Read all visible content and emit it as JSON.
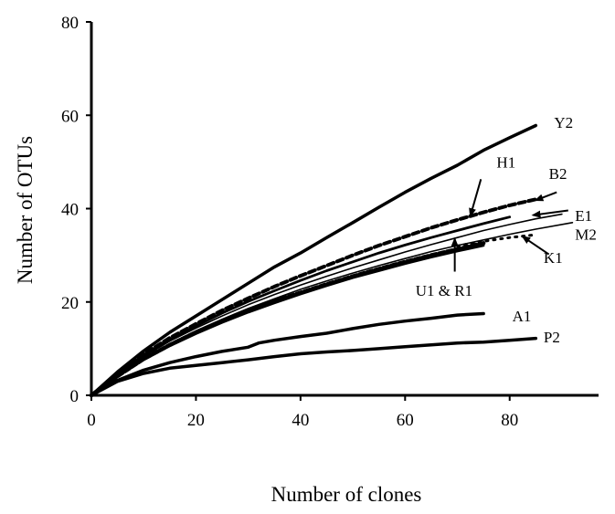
{
  "chart_data": {
    "type": "line",
    "title": "",
    "xlabel": "Number of clones",
    "ylabel": "Number of OTUs",
    "xlim": [
      0,
      97
    ],
    "ylim": [
      0,
      80
    ],
    "x_ticks": [
      0,
      20,
      40,
      60,
      80
    ],
    "y_ticks": [
      0,
      20,
      40,
      60,
      80
    ],
    "grid": false,
    "legend": "none",
    "series": [
      {
        "name": "Y2",
        "style": "solid-thick",
        "x": [
          0,
          5,
          10,
          15,
          20,
          25,
          30,
          35,
          40,
          45,
          50,
          55,
          60,
          65,
          70,
          75,
          80,
          85
        ],
        "y": [
          0,
          5,
          9.5,
          13.5,
          17,
          20.5,
          24,
          27.5,
          30.5,
          33.8,
          37,
          40.3,
          43.5,
          46.5,
          49.3,
          52.5,
          55.2,
          57.8
        ]
      },
      {
        "name": "B2",
        "style": "dashed",
        "x": [
          0,
          5,
          10,
          15,
          20,
          25,
          30,
          35,
          40,
          45,
          50,
          55,
          60,
          65,
          70,
          75,
          80,
          85
        ],
        "y": [
          0,
          4.5,
          8.8,
          12.3,
          15.3,
          18.2,
          20.8,
          23.3,
          25.6,
          27.8,
          30,
          32.1,
          34,
          35.9,
          37.6,
          39.2,
          40.7,
          42
        ]
      },
      {
        "name": "H1",
        "style": "solid",
        "x": [
          0,
          5,
          10,
          15,
          20,
          25,
          30,
          35,
          40,
          45,
          50,
          55,
          60,
          65,
          70,
          75,
          80
        ],
        "y": [
          0,
          4.5,
          8.5,
          11.9,
          14.8,
          17.6,
          20.1,
          22.4,
          24.6,
          26.7,
          28.6,
          30.5,
          32.2,
          33.8,
          35.3,
          36.8,
          38.2
        ]
      },
      {
        "name": "E1",
        "style": "solid-thin",
        "x": [
          0,
          5,
          10,
          15,
          20,
          25,
          30,
          35,
          40,
          45,
          50,
          55,
          60,
          65,
          70,
          75,
          80,
          85,
          90
        ],
        "y": [
          0,
          4.4,
          8.3,
          11.6,
          14.4,
          17,
          19.4,
          21.6,
          23.6,
          25.5,
          27.3,
          29,
          30.7,
          32.3,
          33.8,
          35.3,
          36.6,
          37.8,
          38.8
        ]
      },
      {
        "name": "M2",
        "style": "solid-thin",
        "x": [
          0,
          5,
          10,
          15,
          20,
          25,
          30,
          35,
          40,
          45,
          50,
          55,
          60,
          65,
          70,
          75,
          80,
          85,
          92
        ],
        "y": [
          0,
          4.2,
          8,
          11.1,
          13.8,
          16.3,
          18.6,
          20.7,
          22.7,
          24.5,
          26.2,
          27.8,
          29.3,
          30.8,
          32.1,
          33.3,
          34.5,
          35.6,
          37
        ]
      },
      {
        "name": "U1",
        "style": "dashed-thick",
        "x": [
          0,
          5,
          10,
          15,
          20,
          25,
          30,
          35,
          40,
          45,
          50,
          55,
          60,
          65,
          70,
          75
        ],
        "y": [
          0,
          4.1,
          7.8,
          10.8,
          13.5,
          15.9,
          18.1,
          20.2,
          22,
          23.8,
          25.5,
          27.1,
          28.6,
          30,
          31.3,
          32.6
        ]
      },
      {
        "name": "R1",
        "style": "solid",
        "x": [
          0,
          5,
          10,
          15,
          20,
          25,
          30,
          35,
          40,
          45,
          50,
          55,
          60,
          65,
          70,
          75
        ],
        "y": [
          0,
          4,
          7.6,
          10.6,
          13.2,
          15.6,
          17.8,
          19.8,
          21.7,
          23.5,
          25.2,
          26.7,
          28.2,
          29.6,
          30.9,
          32.1
        ]
      },
      {
        "name": "K1",
        "style": "dotted",
        "x": [
          70,
          75,
          80,
          85
        ],
        "y": [
          32,
          33,
          33.8,
          34.4
        ]
      },
      {
        "name": "A1",
        "style": "solid-thick",
        "x": [
          0,
          5,
          10,
          15,
          20,
          25,
          30,
          32,
          35,
          40,
          45,
          50,
          55,
          60,
          65,
          70,
          75
        ],
        "y": [
          0,
          3.2,
          5.4,
          7,
          8.3,
          9.4,
          10.3,
          11.2,
          11.8,
          12.6,
          13.3,
          14.3,
          15.2,
          15.9,
          16.5,
          17.2,
          17.5
        ]
      },
      {
        "name": "P2",
        "style": "solid-thick",
        "x": [
          0,
          5,
          10,
          15,
          20,
          25,
          30,
          35,
          40,
          45,
          50,
          55,
          60,
          65,
          70,
          75,
          80,
          85
        ],
        "y": [
          0,
          3,
          4.7,
          5.8,
          6.4,
          7,
          7.6,
          8.3,
          8.9,
          9.3,
          9.6,
          10,
          10.4,
          10.8,
          11.2,
          11.4,
          11.8,
          12.2
        ]
      }
    ],
    "labels": [
      {
        "text": "Y2",
        "series": "Y2",
        "at": [
          88.5,
          58.5
        ],
        "arrow": false
      },
      {
        "text": "H1",
        "series": "H1",
        "at": [
          77.5,
          50
        ],
        "arrow_from": [
          74.5,
          46.3
        ],
        "arrow_to": [
          72.5,
          38.5
        ]
      },
      {
        "text": "B2",
        "series": "B2",
        "at": [
          87.5,
          47.5
        ],
        "arrow_from": [
          89,
          43.5
        ],
        "arrow_to": [
          85,
          41.8
        ]
      },
      {
        "text": "E1",
        "series": "E1",
        "at": [
          92.5,
          38.5
        ],
        "arrow_from": [
          91.2,
          39.6
        ],
        "arrow_to": [
          84.5,
          38.6
        ]
      },
      {
        "text": "M2",
        "series": "M2",
        "at": [
          92.5,
          34.5
        ],
        "arrow": false
      },
      {
        "text": "K1",
        "series": "K1",
        "at": [
          86.5,
          29.5
        ],
        "arrow_from": [
          87.5,
          30.2
        ],
        "arrow_to": [
          82.5,
          34
        ]
      },
      {
        "text": "U1 & R1",
        "series": "U1",
        "at": [
          62,
          22.5
        ],
        "arrow_from": [
          69.5,
          26.5
        ],
        "arrow_to": [
          69.5,
          33.5
        ]
      },
      {
        "text": "A1",
        "series": "A1",
        "at": [
          80.5,
          17
        ],
        "arrow": false
      },
      {
        "text": "P2",
        "series": "P2",
        "at": [
          86.5,
          12.5
        ],
        "arrow": false
      }
    ]
  }
}
